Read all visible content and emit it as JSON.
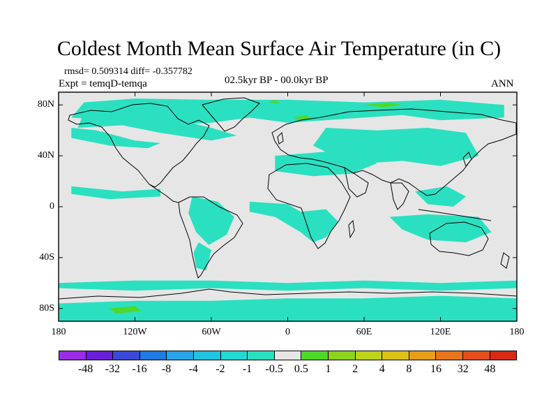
{
  "title": "Coldest Month Mean Surface Air Temperature (in C)",
  "stats_line": "rmsd= 0.509314  diff= -0.357782",
  "experiment_line": "Expt = temqD-temqa",
  "period_line": "02.5kyr BP - 00.0kyr BP",
  "season": "ANN",
  "map": {
    "lat_range": [
      -90,
      90
    ],
    "lon_range": [
      -180,
      180
    ],
    "lat_tick_labels": [
      "80N",
      "40N",
      "0",
      "40S",
      "80S"
    ],
    "lat_tick_values": [
      80,
      40,
      0,
      -40,
      -80
    ],
    "lon_tick_labels": [
      "180",
      "120W",
      "60W",
      "0",
      "60E",
      "120E",
      "180"
    ],
    "lon_tick_values": [
      -180,
      -120,
      -60,
      0,
      60,
      120,
      180
    ],
    "background_color": "#e6e6e6",
    "coastline_color": "#000000"
  },
  "colorbar": {
    "colors": [
      "#9b2ce8",
      "#6a1fd8",
      "#3a4ad8",
      "#1e7be3",
      "#2aa3e8",
      "#20c4e0",
      "#24d9d2",
      "#2ae0c0",
      "#e6e6e6",
      "#4fd82b",
      "#8cd41d",
      "#bcd41a",
      "#dcc116",
      "#e89e18",
      "#e9741b",
      "#e34e1b",
      "#d92a12"
    ],
    "labels": [
      "-48",
      "-32",
      "-16",
      "-8",
      "-4",
      "-2",
      "-1",
      "-0.5",
      "0.5",
      "1",
      "2",
      "4",
      "8",
      "16",
      "32",
      "48"
    ]
  },
  "chart_data": {
    "type": "filled-contour-map",
    "title": "Coldest Month Mean Surface Air Temperature (in C)",
    "variable": "Coldest month mean surface air temperature difference",
    "units": "C",
    "experiment": "temqD-temqa",
    "period": "02.5kyr BP - 00.0kyr BP",
    "season": "ANN",
    "rmsd": 0.509314,
    "diff": -0.357782,
    "contour_levels": [
      -48,
      -32,
      -16,
      -8,
      -4,
      -2,
      -1,
      -0.5,
      0.5,
      1,
      2,
      4,
      8,
      16,
      32,
      48
    ],
    "x_range": [
      -180,
      180
    ],
    "y_range": [
      -90,
      90
    ],
    "regions": [
      {
        "level": "-1 to -0.5",
        "color": "#2ae0c0",
        "poly": [
          [
            -160,
            82
          ],
          [
            -120,
            85
          ],
          [
            -60,
            84
          ],
          [
            0,
            84
          ],
          [
            60,
            82
          ],
          [
            120,
            84
          ],
          [
            170,
            80
          ],
          [
            170,
            70
          ],
          [
            120,
            68
          ],
          [
            90,
            72
          ],
          [
            60,
            70
          ],
          [
            30,
            68
          ],
          [
            0,
            66
          ],
          [
            -30,
            70
          ],
          [
            -60,
            66
          ],
          [
            -100,
            64
          ],
          [
            -140,
            68
          ],
          [
            -170,
            70
          ]
        ]
      },
      {
        "level": "-1 to -0.5",
        "color": "#2ae0c0",
        "poly": [
          [
            -160,
            74
          ],
          [
            -110,
            74
          ],
          [
            -60,
            62
          ],
          [
            -40,
            56
          ],
          [
            -60,
            52
          ],
          [
            -100,
            58
          ],
          [
            -130,
            64
          ],
          [
            -165,
            62
          ]
        ]
      },
      {
        "level": "-1 to -0.5",
        "color": "#2ae0c0",
        "poly": [
          [
            30,
            62
          ],
          [
            70,
            60
          ],
          [
            110,
            62
          ],
          [
            140,
            58
          ],
          [
            150,
            40
          ],
          [
            120,
            32
          ],
          [
            90,
            36
          ],
          [
            60,
            34
          ],
          [
            40,
            38
          ],
          [
            20,
            48
          ]
        ]
      },
      {
        "level": "-1 to -0.5",
        "color": "#2ae0c0",
        "poly": [
          [
            -10,
            40
          ],
          [
            40,
            44
          ],
          [
            60,
            40
          ],
          [
            70,
            34
          ],
          [
            50,
            26
          ],
          [
            20,
            24
          ],
          [
            -10,
            28
          ]
        ]
      },
      {
        "level": "-1 to -0.5",
        "color": "#2ae0c0",
        "poly": [
          [
            -170,
            62
          ],
          [
            -150,
            60
          ],
          [
            -120,
            52
          ],
          [
            -100,
            50
          ],
          [
            -110,
            46
          ],
          [
            -140,
            48
          ],
          [
            -170,
            54
          ]
        ]
      },
      {
        "level": "-1 to -0.5",
        "color": "#2ae0c0",
        "poly": [
          [
            -170,
            16
          ],
          [
            -130,
            12
          ],
          [
            -100,
            14
          ],
          [
            -100,
            8
          ],
          [
            -140,
            6
          ],
          [
            -170,
            10
          ]
        ]
      },
      {
        "level": "-1 to -0.5",
        "color": "#2ae0c0",
        "poly": [
          [
            -75,
            8
          ],
          [
            -55,
            4
          ],
          [
            -42,
            -8
          ],
          [
            -48,
            -22
          ],
          [
            -62,
            -30
          ],
          [
            -72,
            -20
          ],
          [
            -78,
            -5
          ]
        ]
      },
      {
        "level": "-1 to -0.5",
        "color": "#2ae0c0",
        "poly": [
          [
            -70,
            -28
          ],
          [
            -60,
            -34
          ],
          [
            -64,
            -50
          ],
          [
            -72,
            -48
          ],
          [
            -74,
            -36
          ]
        ]
      },
      {
        "level": "-1 to -0.5",
        "color": "#2ae0c0",
        "poly": [
          [
            -30,
            4
          ],
          [
            0,
            2
          ],
          [
            10,
            -4
          ],
          [
            30,
            -2
          ],
          [
            40,
            -12
          ],
          [
            30,
            -24
          ],
          [
            20,
            -28
          ],
          [
            10,
            -20
          ],
          [
            -10,
            -8
          ],
          [
            -30,
            -4
          ]
        ]
      },
      {
        "level": "-1 to -0.5",
        "color": "#2ae0c0",
        "poly": [
          [
            80,
            -8
          ],
          [
            110,
            -6
          ],
          [
            150,
            -8
          ],
          [
            160,
            -20
          ],
          [
            140,
            -28
          ],
          [
            110,
            -26
          ],
          [
            90,
            -18
          ]
        ]
      },
      {
        "level": "-1 to -0.5",
        "color": "#2ae0c0",
        "poly": [
          [
            100,
            12
          ],
          [
            125,
            16
          ],
          [
            140,
            8
          ],
          [
            130,
            0
          ],
          [
            110,
            2
          ]
        ]
      },
      {
        "level": "-1 to -0.5",
        "color": "#2ae0c0",
        "poly": [
          [
            -180,
            -60
          ],
          [
            -120,
            -58
          ],
          [
            -60,
            -58
          ],
          [
            0,
            -60
          ],
          [
            60,
            -58
          ],
          [
            120,
            -60
          ],
          [
            180,
            -58
          ],
          [
            180,
            -64
          ],
          [
            120,
            -66
          ],
          [
            60,
            -64
          ],
          [
            0,
            -66
          ],
          [
            -60,
            -64
          ],
          [
            -120,
            -66
          ],
          [
            -180,
            -64
          ]
        ]
      },
      {
        "level": "-1 to -0.5",
        "color": "#2ae0c0",
        "poly": [
          [
            -180,
            -76
          ],
          [
            -120,
            -74
          ],
          [
            -60,
            -74
          ],
          [
            0,
            -72
          ],
          [
            60,
            -72
          ],
          [
            120,
            -70
          ],
          [
            180,
            -72
          ],
          [
            180,
            -90
          ],
          [
            -180,
            -90
          ]
        ]
      },
      {
        "level": "0.5 to 1",
        "color": "#4fd82b",
        "poly": [
          [
            -140,
            -80
          ],
          [
            -120,
            -78
          ],
          [
            -115,
            -82
          ],
          [
            -135,
            -84
          ]
        ]
      },
      {
        "level": "0.5 to 1",
        "color": "#4fd82b",
        "poly": [
          [
            60,
            80
          ],
          [
            80,
            82
          ],
          [
            90,
            80
          ],
          [
            75,
            78
          ]
        ]
      },
      {
        "level": "0.5 to 1",
        "color": "#4fd82b",
        "poly": [
          [
            5,
            70
          ],
          [
            15,
            72
          ],
          [
            18,
            69
          ],
          [
            8,
            68
          ]
        ]
      },
      {
        "level": "0.5 to 1",
        "color": "#4fd82b",
        "poly": [
          [
            -15,
            82
          ],
          [
            -10,
            84
          ],
          [
            -6,
            81
          ]
        ]
      }
    ]
  }
}
